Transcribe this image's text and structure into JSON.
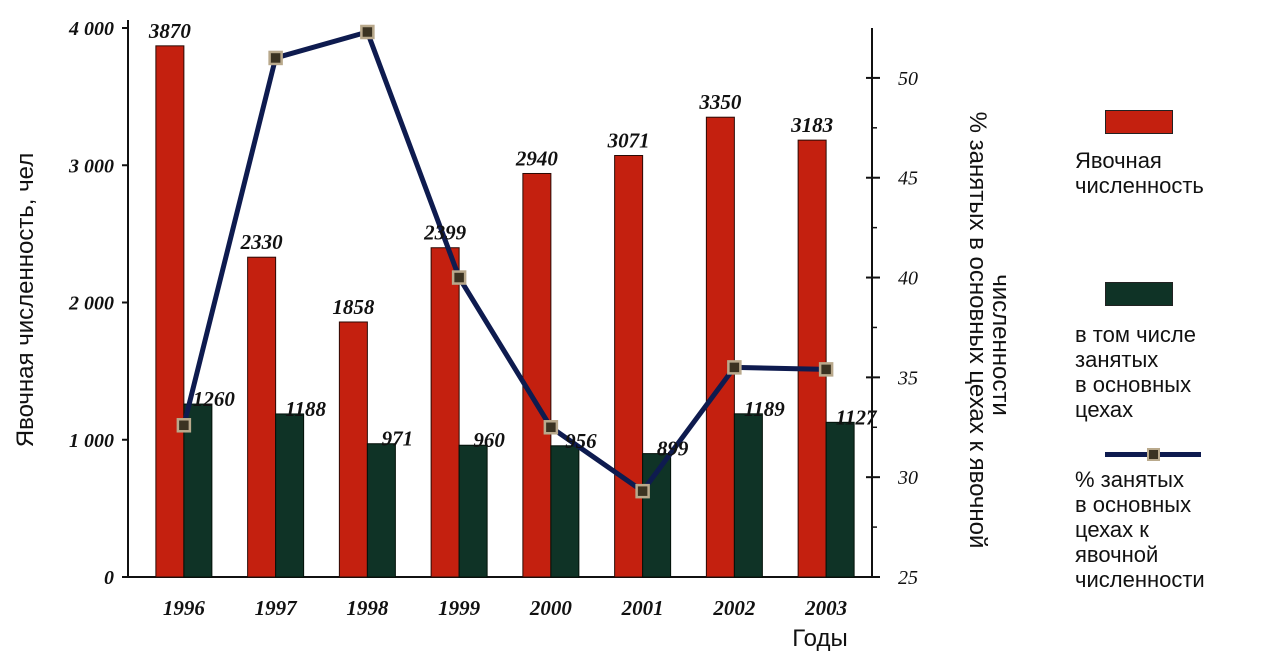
{
  "chart_data": {
    "type": "bar",
    "categories": [
      "1996",
      "1997",
      "1998",
      "1999",
      "2000",
      "2001",
      "2002",
      "2003"
    ],
    "series": [
      {
        "name": "Явочная численность",
        "values": [
          3870,
          2330,
          1858,
          2399,
          2940,
          3071,
          3350,
          3183
        ],
        "labels": [
          "3870",
          "2330",
          "1858",
          "2399",
          "2940",
          "3071",
          "3350",
          "3183"
        ],
        "color": "#c4200f"
      },
      {
        "name": "в том числе занятых в основных цехах",
        "values": [
          1260,
          1188,
          971,
          960,
          956,
          899,
          1189,
          1127
        ],
        "labels": [
          "1260",
          "1188",
          "971",
          "960",
          "956",
          "899",
          "1189",
          "1127"
        ],
        "color": "#0f3326"
      },
      {
        "name": "% занятых в основных цехах к явочной численности",
        "type": "line",
        "axis": "right",
        "values": [
          32.6,
          51.0,
          52.3,
          40.0,
          32.5,
          29.3,
          35.5,
          35.4
        ],
        "color": "#0e1b4f"
      }
    ],
    "xlabel": "Годы",
    "ylabel": "Явочная численность, чел",
    "ylabel_right": "% занятых в основных цехах к явочной численности",
    "ylim": [
      0,
      4000
    ],
    "ylim_right": [
      25,
      52.5
    ],
    "yticks": [
      0,
      1000,
      2000,
      3000,
      4000
    ],
    "ytick_labels": [
      "0",
      "1 000",
      "2 000",
      "3 000",
      "4 000"
    ],
    "yticks_right": [
      25,
      30,
      35,
      40,
      45,
      50
    ],
    "ytick_labels_right": [
      "25",
      "30",
      "35",
      "40",
      "45",
      "50"
    ],
    "grid": false,
    "legend_position": "right"
  },
  "legend": {
    "items": [
      {
        "text_lines": [
          "Явочная",
          "численность"
        ],
        "color": "#c4200f",
        "kind": "bar"
      },
      {
        "text_lines": [
          "в том числе",
          "занятых",
          "в основных",
          "цехах"
        ],
        "color": "#0f3326",
        "kind": "bar"
      },
      {
        "text_lines": [
          "% занятых",
          "в основных",
          "цехах к",
          "явочной",
          "численности"
        ],
        "color": "#0e1b4f",
        "kind": "line"
      }
    ]
  }
}
